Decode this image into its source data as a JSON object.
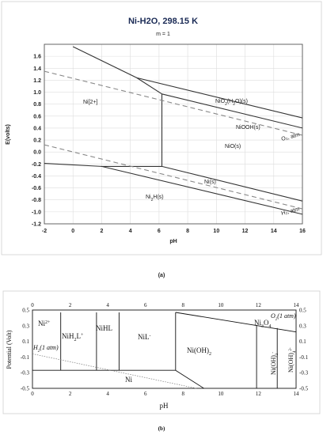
{
  "chart_data": [
    {
      "type": "line",
      "title": "Ni-H2O, 298.15 K",
      "subtitle": "m = 1",
      "xlabel": "pH",
      "ylabel": "E(volts)",
      "xlim": [
        -2,
        16
      ],
      "ylim": [
        -1.2,
        1.8
      ],
      "xticks": [
        -2,
        0,
        2,
        4,
        6,
        8,
        10,
        12,
        14,
        16
      ],
      "yticks": [
        -1.2,
        -1.0,
        -0.8,
        -0.6,
        -0.4,
        -0.2,
        0.0,
        0.2,
        0.4,
        0.6,
        0.8,
        1.0,
        1.2,
        1.4,
        1.6
      ],
      "grid": true,
      "series": [
        {
          "style": "solid",
          "points": [
            [
              0.0,
              1.76
            ],
            [
              4.45,
              1.24
            ],
            [
              6.2,
              0.97
            ]
          ]
        },
        {
          "style": "solid",
          "points": [
            [
              4.45,
              1.24
            ],
            [
              16.0,
              0.57
            ]
          ]
        },
        {
          "style": "solid",
          "points": [
            [
              6.2,
              0.97
            ],
            [
              16.0,
              0.4
            ]
          ]
        },
        {
          "style": "solid",
          "points": [
            [
              6.2,
              0.97
            ],
            [
              6.2,
              -0.24
            ]
          ]
        },
        {
          "style": "solid",
          "points": [
            [
              -2.0,
              -0.19
            ],
            [
              2.0,
              -0.24
            ],
            [
              6.2,
              -0.24
            ]
          ]
        },
        {
          "style": "solid",
          "points": [
            [
              2.0,
              -0.24
            ],
            [
              16.0,
              -1.04
            ]
          ]
        },
        {
          "style": "solid",
          "points": [
            [
              6.2,
              -0.24
            ],
            [
              16.0,
              -0.82
            ]
          ]
        },
        {
          "style": "dashed",
          "points": [
            [
              -2.0,
              1.35
            ],
            [
              16.0,
              0.28
            ]
          ]
        },
        {
          "style": "dashed",
          "points": [
            [
              -2.0,
              0.12
            ],
            [
              16.0,
              -0.95
            ]
          ]
        }
      ],
      "regions": [
        "Ni[2+]",
        "NiO2(H2O)(s)",
        "NiOOH(s)",
        "NiO(s)",
        "Ni(s)",
        "Ni2H(s)"
      ],
      "line_labels": [
        "O2, atm",
        "H2, atm"
      ],
      "caption": "(a)"
    },
    {
      "type": "line",
      "xlabel": "pH",
      "ylabel": "Potential (Volt)",
      "xlim": [
        0,
        14
      ],
      "ylim": [
        -0.5,
        0.5
      ],
      "xticks": [
        0,
        2,
        4,
        6,
        8,
        10,
        12,
        14
      ],
      "yticks": [
        -0.5,
        -0.3,
        -0.1,
        0.1,
        0.3,
        0.5
      ],
      "grid": false,
      "series": [
        {
          "style": "solid",
          "points": [
            [
              1.5,
              0.47
            ],
            [
              1.5,
              -0.27
            ]
          ]
        },
        {
          "style": "solid",
          "points": [
            [
              3.4,
              0.47
            ],
            [
              3.4,
              -0.27
            ]
          ]
        },
        {
          "style": "solid",
          "points": [
            [
              4.6,
              0.47
            ],
            [
              4.6,
              -0.27
            ]
          ]
        },
        {
          "style": "solid",
          "points": [
            [
              7.6,
              0.47
            ],
            [
              7.6,
              -0.27
            ]
          ]
        },
        {
          "style": "solid",
          "points": [
            [
              0.0,
              -0.27
            ],
            [
              7.6,
              -0.27
            ]
          ]
        },
        {
          "style": "solid",
          "points": [
            [
              7.6,
              -0.27
            ],
            [
              9.1,
              -0.5
            ]
          ]
        },
        {
          "style": "solid",
          "points": [
            [
              7.6,
              0.47
            ],
            [
              14.0,
              0.22
            ]
          ]
        },
        {
          "style": "solid",
          "points": [
            [
              11.9,
              0.31
            ],
            [
              11.9,
              -0.5
            ]
          ]
        },
        {
          "style": "solid",
          "points": [
            [
              13.0,
              0.27
            ],
            [
              13.0,
              -0.5
            ]
          ]
        },
        {
          "style": "dotted",
          "points": [
            [
              0.0,
              -0.06
            ],
            [
              8.7,
              -0.5
            ]
          ]
        }
      ],
      "regions": [
        "Ni2+",
        "NiH2L+",
        "NiHL",
        "NiL-",
        "Ni(OH)2",
        "Ni3O4",
        "Ni(OH)3-",
        "Ni(OH)42-",
        "Ni"
      ],
      "line_labels": [
        "O2(1 atm)",
        "H2(1 atm)"
      ],
      "caption": "(b)"
    }
  ],
  "labels": {
    "a_title": "Ni-H2O, 298.15 K",
    "a_sub": "m = 1",
    "a_ylabel": "E(volts)",
    "a_xlabel": "pH",
    "a_ni2": "Ni[2+]",
    "a_nio2_main": "NiO",
    "a_nio2_sub1": "2",
    "a_nio2_mid": "(H",
    "a_nio2_sub2": "2",
    "a_nio2_end": "O)(s)",
    "a_niooh": "NiOOH(s)",
    "a_nio": "NiO(s)",
    "a_nis": "Ni(s)",
    "a_ni2h_a": "Ni",
    "a_ni2h_sub": "2",
    "a_ni2h_b": "H(s)",
    "a_o2lbl": "O₂, atm",
    "a_h2lbl": "H₂, atm",
    "a_caption": "(a)",
    "b_ylabel": "Potential (Volt)",
    "b_xlabel": "pH",
    "b_ni2_a": "Ni",
    "b_ni2_sup": "2+",
    "b_nih2l_a": "NiH",
    "b_nih2l_sub": "2",
    "b_nih2l_b": "L",
    "b_nih2l_sup": "+",
    "b_nihl": "NiHL",
    "b_nil_a": "NiL",
    "b_nil_sup": "-",
    "b_nioh2_a": "Ni(OH)",
    "b_nioh2_sub": "2",
    "b_ni3o4_a": "Ni",
    "b_ni3o4_sub1": "3",
    "b_ni3o4_b": "O",
    "b_ni3o4_sub2": "4",
    "b_nioh3_a": "Ni(OH)",
    "b_nioh3_sub": "3",
    "b_nioh3_sup": "-",
    "b_nioh4_a": "Ni(OH)",
    "b_nioh4_sub": "4",
    "b_nioh4_sup": "2-",
    "b_ni": "Ni",
    "b_o2_a": "O",
    "b_o2_sub": "2",
    "b_o2_b": "(1 atm)",
    "b_h2_a": "H",
    "b_h2_sub": "2",
    "b_h2_b": "(1 atm)",
    "b_caption": "(b)"
  }
}
